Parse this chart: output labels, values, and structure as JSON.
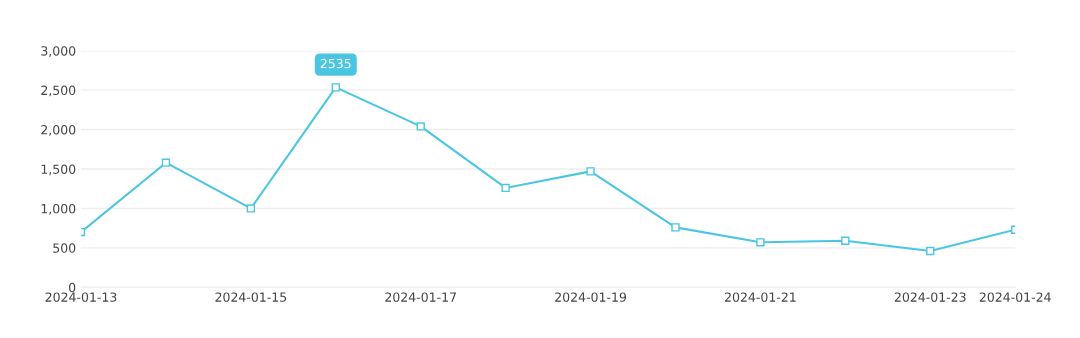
{
  "chart_data": {
    "type": "line",
    "x": [
      "2024-01-13",
      "2024-01-14",
      "2024-01-15",
      "2024-01-16",
      "2024-01-17",
      "2024-01-18",
      "2024-01-19",
      "2024-01-20",
      "2024-01-21",
      "2024-01-22",
      "2024-01-23",
      "2024-01-24"
    ],
    "series": [
      {
        "color": "#4ac6e2",
        "values": [
          700,
          1580,
          1000,
          2535,
          2040,
          1260,
          1470,
          760,
          570,
          590,
          460,
          730
        ]
      }
    ],
    "xlim": [
      "2024-01-13",
      "2024-01-24"
    ],
    "xticks": [
      "2024-01-13",
      "2024-01-15",
      "2024-01-17",
      "2024-01-19",
      "2024-01-21",
      "2024-01-23",
      "2024-01-24"
    ],
    "ylim": [
      0,
      3000
    ],
    "yticks": [
      {
        "value": 0,
        "label": "0"
      },
      {
        "value": 500,
        "label": "500"
      },
      {
        "value": 1000,
        "label": "1,000"
      },
      {
        "value": 1500,
        "label": "1,500"
      },
      {
        "value": 2000,
        "label": "2,000"
      },
      {
        "value": 2500,
        "label": "2,500"
      },
      {
        "value": 3000,
        "label": "3,000"
      }
    ],
    "grid": "y",
    "marker": "square",
    "line_style": "solid",
    "annotations": [
      {
        "text": "2535",
        "x": "2024-01-16",
        "y": 2535
      }
    ]
  }
}
